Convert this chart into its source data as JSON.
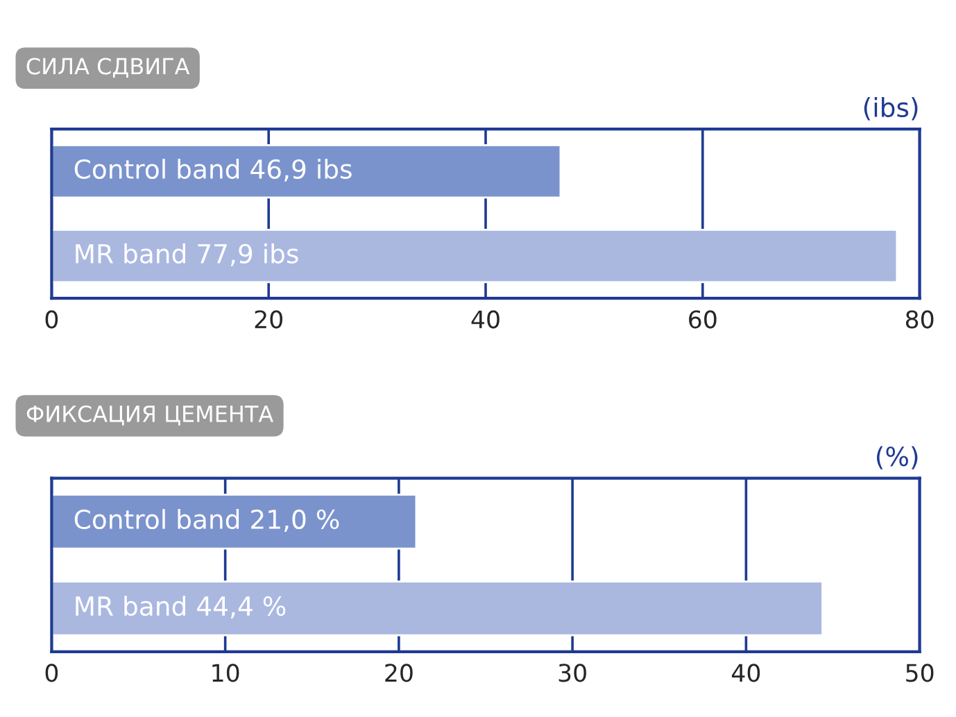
{
  "chart_data": [
    {
      "type": "bar",
      "orientation": "horizontal",
      "title": "СИЛА СДВИГА",
      "xlabel": "(ibs)",
      "categories": [
        "Control band",
        "MR band"
      ],
      "values": [
        46.9,
        77.9
      ],
      "colors": [
        "#7b93cc",
        "#aab8e0"
      ],
      "value_labels": [
        "46,9 ibs",
        "77,9 ibs"
      ],
      "xlim": [
        0,
        80
      ],
      "xticks": [
        0,
        20,
        40,
        60,
        80
      ],
      "grid": "x",
      "tick_labels": "x"
    },
    {
      "type": "bar",
      "orientation": "horizontal",
      "title": "ФИКСАЦИЯ ЦЕМЕНТА",
      "xlabel": "(%)",
      "categories": [
        "Control band",
        "MR band"
      ],
      "values": [
        21.0,
        44.4
      ],
      "colors": [
        "#7b93cc",
        "#aab8e0"
      ],
      "value_labels": [
        "21,0 %",
        "44,4 %"
      ],
      "xlim": [
        0,
        50
      ],
      "xticks": [
        0,
        10,
        20,
        30,
        40,
        50
      ],
      "grid": "x",
      "tick_labels": "x"
    }
  ]
}
